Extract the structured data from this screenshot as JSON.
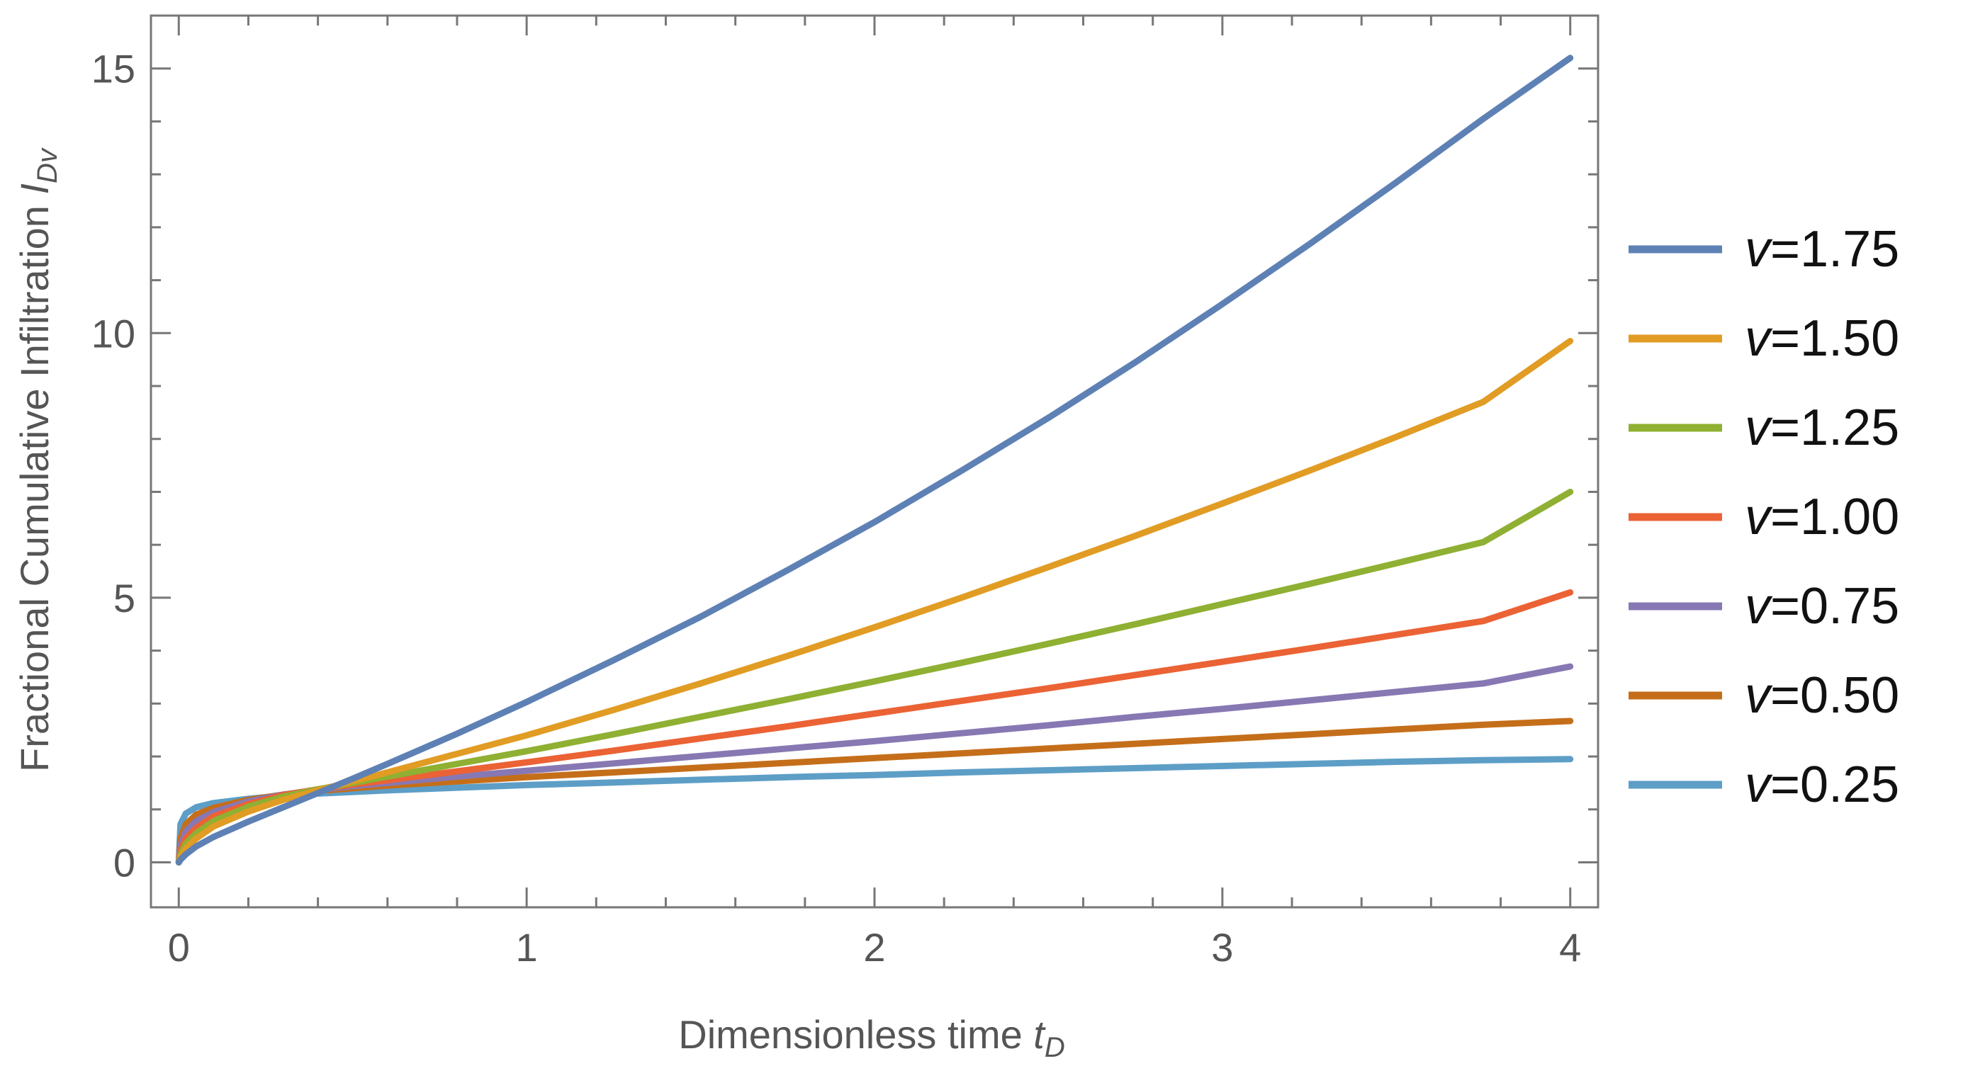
{
  "chart_data": {
    "type": "line",
    "title": "",
    "xlabel_prefix": "Dimensionless time ",
    "xlabel_var": "t",
    "xlabel_sub": "D",
    "ylabel_prefix": "Fractional Cumulative Infiltration ",
    "ylabel_var": "I",
    "ylabel_sub": "Dv",
    "xlim": [
      -0.08,
      4.08
    ],
    "ylim": [
      -0.85,
      16.0
    ],
    "xticks": [
      0,
      1,
      2,
      3,
      4
    ],
    "xtick_labels": [
      "0",
      "1",
      "2",
      "3",
      "4"
    ],
    "yticks": [
      0,
      5,
      10,
      15
    ],
    "ytick_labels": [
      "0",
      "5",
      "10",
      "15"
    ],
    "grid": false,
    "legend_position": "right",
    "x": [
      0,
      0.005,
      0.02,
      0.05,
      0.1,
      0.2,
      0.3,
      0.4,
      0.5,
      0.6,
      0.8,
      1.0,
      1.25,
      1.5,
      1.75,
      2.0,
      2.25,
      2.5,
      2.75,
      3.0,
      3.25,
      3.5,
      3.75,
      4.0
    ],
    "series": [
      {
        "name": "v=1.75",
        "label_var": "v",
        "label_value": "=1.75",
        "color": "#5e81b5",
        "values": [
          0,
          0.05,
          0.15,
          0.3,
          0.48,
          0.77,
          1.04,
          1.31,
          1.58,
          1.86,
          2.43,
          3.03,
          3.82,
          4.64,
          5.52,
          6.43,
          7.4,
          8.4,
          9.45,
          10.55,
          11.68,
          12.85,
          14.05,
          15.2
        ]
      },
      {
        "name": "v=1.50",
        "label_var": "v",
        "label_value": "=1.50",
        "color": "#e19c24",
        "values": [
          0,
          0.1,
          0.26,
          0.45,
          0.68,
          0.96,
          1.18,
          1.36,
          1.53,
          1.7,
          2.05,
          2.4,
          2.88,
          3.38,
          3.9,
          4.44,
          5.0,
          5.58,
          6.17,
          6.78,
          7.4,
          8.04,
          8.7,
          9.85
        ]
      },
      {
        "name": "v=1.25",
        "label_var": "v",
        "label_value": "=1.25",
        "color": "#8fb032",
        "values": [
          0,
          0.15,
          0.35,
          0.55,
          0.78,
          1.05,
          1.24,
          1.38,
          1.5,
          1.62,
          1.86,
          2.1,
          2.42,
          2.75,
          3.08,
          3.42,
          3.77,
          4.13,
          4.5,
          4.88,
          5.26,
          5.65,
          6.05,
          7.0
        ]
      },
      {
        "name": "v=1.00",
        "label_var": "v",
        "label_value": "=1.00",
        "color": "#eb6235",
        "values": [
          0,
          0.22,
          0.45,
          0.65,
          0.87,
          1.1,
          1.27,
          1.38,
          1.47,
          1.55,
          1.72,
          1.89,
          2.11,
          2.34,
          2.57,
          2.81,
          3.05,
          3.29,
          3.54,
          3.79,
          4.04,
          4.3,
          4.56,
          5.1
        ]
      },
      {
        "name": "v=0.75",
        "label_var": "v",
        "label_value": "=0.75",
        "color": "#8778b3",
        "values": [
          0,
          0.32,
          0.58,
          0.78,
          0.95,
          1.15,
          1.28,
          1.37,
          1.44,
          1.5,
          1.62,
          1.73,
          1.87,
          2.01,
          2.15,
          2.29,
          2.44,
          2.59,
          2.75,
          2.9,
          3.06,
          3.22,
          3.38,
          3.7
        ]
      },
      {
        "name": "v=0.50",
        "label_var": "v",
        "label_value": "=0.50",
        "color": "#c56e1a",
        "values": [
          0,
          0.45,
          0.72,
          0.9,
          1.03,
          1.18,
          1.28,
          1.35,
          1.4,
          1.45,
          1.53,
          1.61,
          1.7,
          1.79,
          1.88,
          1.97,
          2.06,
          2.15,
          2.24,
          2.33,
          2.42,
          2.51,
          2.6,
          2.67
        ]
      },
      {
        "name": "v=0.25",
        "label_var": "v",
        "label_value": "=0.25",
        "color": "#5d9ec7",
        "values": [
          0,
          0.72,
          0.92,
          1.04,
          1.12,
          1.2,
          1.26,
          1.3,
          1.33,
          1.36,
          1.41,
          1.46,
          1.51,
          1.56,
          1.61,
          1.65,
          1.7,
          1.74,
          1.78,
          1.82,
          1.86,
          1.9,
          1.93,
          1.95
        ]
      }
    ]
  }
}
